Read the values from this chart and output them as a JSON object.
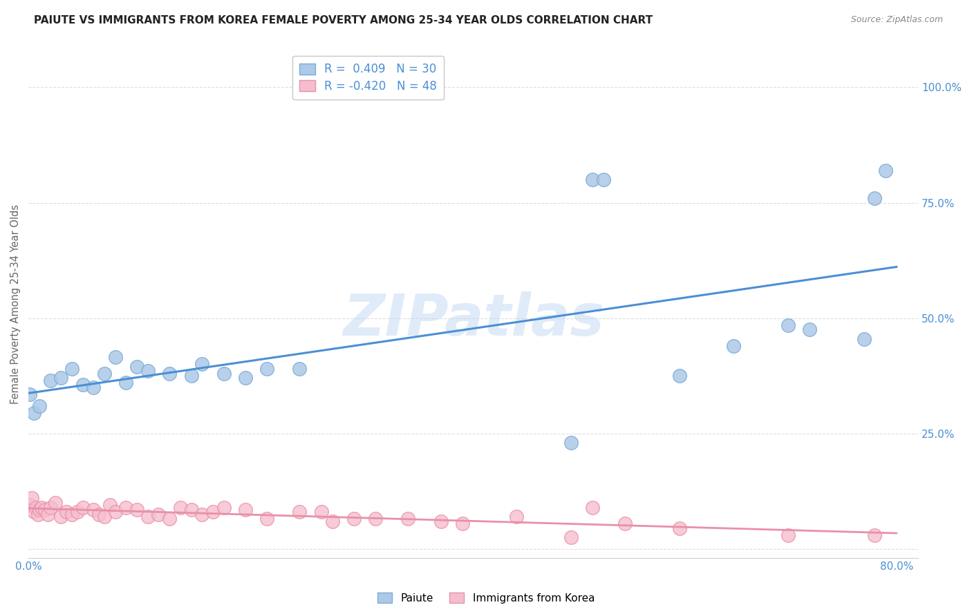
{
  "title": "PAIUTE VS IMMIGRANTS FROM KOREA FEMALE POVERTY AMONG 25-34 YEAR OLDS CORRELATION CHART",
  "source": "Source: ZipAtlas.com",
  "ylabel": "Female Poverty Among 25-34 Year Olds",
  "xlim": [
    0.0,
    0.82
  ],
  "ylim": [
    -0.02,
    1.08
  ],
  "background_color": "#ffffff",
  "grid_color": "#dddddd",
  "watermark_text": "ZIPatlas",
  "paiute_color": "#adc8e8",
  "paiute_edge_color": "#7aadd4",
  "korea_color": "#f5bece",
  "korea_edge_color": "#e890a8",
  "line_blue": "#4a8fd4",
  "line_pink": "#e890a8",
  "paiute_x": [
    0.001,
    0.005,
    0.01,
    0.02,
    0.03,
    0.04,
    0.05,
    0.06,
    0.07,
    0.08,
    0.09,
    0.1,
    0.11,
    0.13,
    0.15,
    0.16,
    0.18,
    0.2,
    0.22,
    0.25,
    0.5,
    0.52,
    0.53,
    0.6,
    0.65,
    0.7,
    0.72,
    0.77,
    0.78,
    0.79
  ],
  "paiute_y": [
    0.335,
    0.295,
    0.31,
    0.365,
    0.37,
    0.39,
    0.355,
    0.35,
    0.38,
    0.415,
    0.36,
    0.395,
    0.385,
    0.38,
    0.375,
    0.4,
    0.38,
    0.37,
    0.39,
    0.39,
    0.23,
    0.8,
    0.8,
    0.375,
    0.44,
    0.485,
    0.475,
    0.455,
    0.76,
    0.82
  ],
  "korea_x": [
    0.001,
    0.003,
    0.005,
    0.007,
    0.009,
    0.01,
    0.012,
    0.015,
    0.018,
    0.02,
    0.025,
    0.03,
    0.035,
    0.04,
    0.045,
    0.05,
    0.06,
    0.065,
    0.07,
    0.075,
    0.08,
    0.09,
    0.1,
    0.11,
    0.12,
    0.13,
    0.14,
    0.15,
    0.16,
    0.17,
    0.18,
    0.2,
    0.22,
    0.25,
    0.27,
    0.28,
    0.3,
    0.32,
    0.35,
    0.38,
    0.4,
    0.45,
    0.5,
    0.52,
    0.55,
    0.6,
    0.7,
    0.78
  ],
  "korea_y": [
    0.095,
    0.11,
    0.08,
    0.09,
    0.075,
    0.085,
    0.09,
    0.085,
    0.075,
    0.09,
    0.1,
    0.07,
    0.08,
    0.075,
    0.08,
    0.09,
    0.085,
    0.075,
    0.07,
    0.095,
    0.08,
    0.09,
    0.085,
    0.07,
    0.075,
    0.065,
    0.09,
    0.085,
    0.075,
    0.08,
    0.09,
    0.085,
    0.065,
    0.08,
    0.08,
    0.06,
    0.065,
    0.065,
    0.065,
    0.06,
    0.055,
    0.07,
    0.025,
    0.09,
    0.055,
    0.045,
    0.03,
    0.03
  ]
}
